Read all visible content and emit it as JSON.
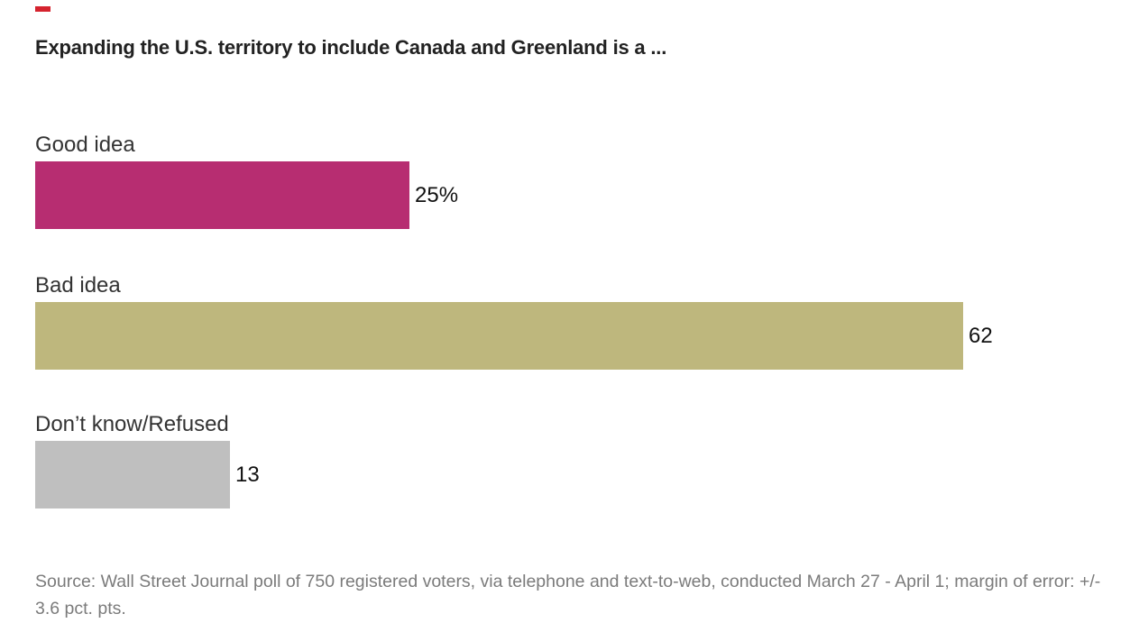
{
  "brand": {
    "accent_red": "#d5232e"
  },
  "header": {
    "title": "Expanding the U.S. territory to include Canada and Greenland is a ..."
  },
  "chart_data": {
    "type": "bar",
    "orientation": "horizontal",
    "title": "Expanding the U.S. territory to include Canada and Greenland is a ...",
    "categories": [
      "Good idea",
      "Bad idea",
      "Don’t know/Refused"
    ],
    "values": [
      25,
      62,
      13
    ],
    "value_labels": [
      "25%",
      "62",
      "13"
    ],
    "bar_colors": [
      "#b72d71",
      "#beb77d",
      "#bfbfbf"
    ],
    "unit": "percent of respondents",
    "xlim": [
      0,
      62
    ],
    "grid": false,
    "legend_position": "none",
    "value_label_position": "outside-end"
  },
  "footer": {
    "source_note": "Source: Wall Street Journal poll of 750 registered voters, via telephone and text-to-web, conducted March 27 - April 1; margin of error: +/- 3.6 pct. pts."
  }
}
